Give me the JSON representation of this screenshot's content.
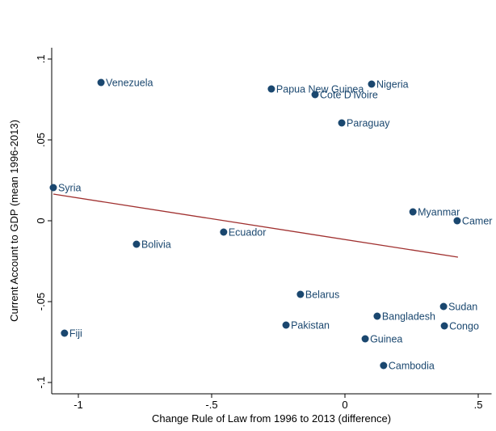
{
  "chart_data": {
    "type": "scatter",
    "x_label": "Change Rule of Law from 1996 to 2013 (difference)",
    "y_label": "Current Account to GDP (mean 1996-2013)",
    "labels": [
      "Venezuela",
      "Papua New Guinea",
      "Nigeria",
      "Cote D'Ivoire",
      "Paraguay",
      "Syria",
      "Myanmar",
      "Camer",
      "Bolivia",
      "Ecuador",
      "Belarus",
      "Sudan",
      "Bangladesh",
      "Pakistan",
      "Congo",
      "Fiji",
      "Guinea",
      "Cambodia"
    ],
    "x": [
      -0.915,
      -0.276,
      0.1,
      -0.112,
      -0.012,
      -1.094,
      0.255,
      0.421,
      -0.782,
      -0.455,
      -0.167,
      0.37,
      0.121,
      -0.221,
      0.373,
      -1.052,
      0.076,
      0.145
    ],
    "values": [
      0.0855,
      0.0815,
      0.0845,
      0.078,
      0.0605,
      0.0205,
      0.0055,
      0,
      -0.0145,
      -0.007,
      -0.0455,
      -0.053,
      -0.059,
      -0.0645,
      -0.065,
      -0.0695,
      -0.073,
      -0.0895
    ],
    "color": "#1a476f",
    "fit": {
      "x": [
        -1.094,
        0.424
      ],
      "values": [
        0.0165,
        -0.0225
      ],
      "color": "#a0302f"
    },
    "xlim": [
      -1.1,
      0.55
    ],
    "ylim": [
      -0.107,
      0.107
    ],
    "xticks": [
      -1,
      {
        "value": -0.5,
        "label": "-.5"
      },
      0,
      {
        "value": 0.5,
        "label": ".5"
      }
    ],
    "yticks": [
      {
        "value": -0.1,
        "label": "-.1"
      },
      {
        "value": -0.05,
        "label": "-.05"
      },
      0,
      {
        "value": 0.05,
        "label": ".05"
      },
      {
        "value": 0.1,
        "label": ".1"
      }
    ]
  }
}
